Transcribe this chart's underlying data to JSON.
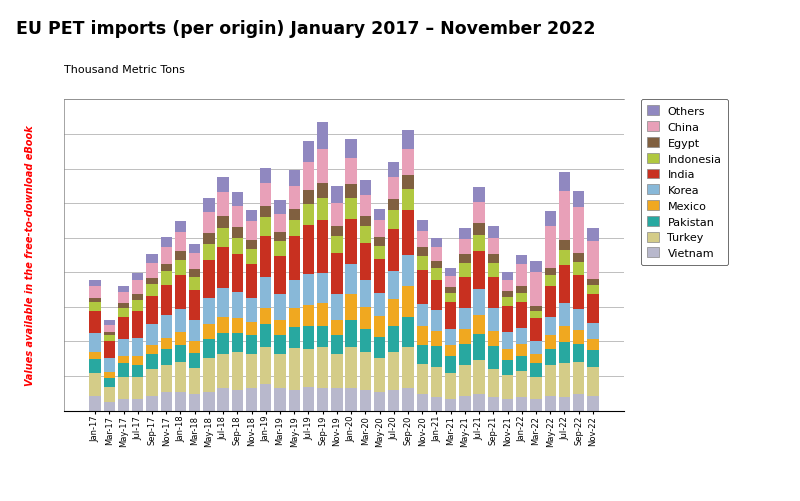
{
  "title": "EU PET imports (per origin) January 2017 – November 2022",
  "ylabel": "Thousand Metric Tons",
  "watermark": "Values available in the free-to-download eBook",
  "countries": [
    "Vietnam",
    "Turkey",
    "Pakistan",
    "Mexico",
    "Korea",
    "India",
    "Indonesia",
    "Egypt",
    "China",
    "Others"
  ],
  "colors": {
    "Vietnam": "#b8b8cc",
    "Turkey": "#d4cc88",
    "Pakistan": "#28a8a0",
    "Mexico": "#f0a820",
    "Korea": "#88b8d8",
    "India": "#c83020",
    "Indonesia": "#b0c840",
    "Egypt": "#806040",
    "China": "#e8a0b8",
    "Others": "#9088c0"
  },
  "months": [
    "Jan-17",
    "Mar-17",
    "May-17",
    "Jul-17",
    "Sep-17",
    "Nov-17",
    "Jan-18",
    "Mar-18",
    "May-18",
    "Jul-18",
    "Sep-18",
    "Nov-18",
    "Jan-19",
    "Mar-19",
    "May-19",
    "Jul-19",
    "Sep-19",
    "Nov-19",
    "Jan-20",
    "Mar-20",
    "May-20",
    "Jul-20",
    "Sep-20",
    "Nov-20",
    "Jan-21",
    "Mar-21",
    "May-21",
    "Jul-21",
    "Sep-21",
    "Nov-21",
    "Jan-22",
    "Mar-22",
    "May-22",
    "Jul-22",
    "Sep-22",
    "Nov-22"
  ],
  "data": {
    "Vietnam": [
      20,
      12,
      15,
      15,
      20,
      25,
      25,
      22,
      25,
      30,
      28,
      30,
      35,
      30,
      28,
      32,
      30,
      30,
      30,
      28,
      25,
      28,
      30,
      22,
      18,
      15,
      20,
      22,
      18,
      15,
      18,
      15,
      20,
      18,
      22,
      20
    ],
    "Turkey": [
      30,
      20,
      30,
      30,
      35,
      35,
      40,
      35,
      45,
      45,
      50,
      45,
      50,
      45,
      55,
      50,
      55,
      45,
      55,
      50,
      45,
      50,
      55,
      40,
      40,
      35,
      40,
      45,
      38,
      32,
      35,
      30,
      40,
      45,
      42,
      38
    ],
    "Pakistan": [
      18,
      12,
      18,
      15,
      20,
      22,
      22,
      20,
      25,
      28,
      25,
      25,
      30,
      25,
      28,
      30,
      28,
      25,
      35,
      30,
      28,
      35,
      40,
      25,
      28,
      22,
      28,
      35,
      30,
      20,
      20,
      18,
      22,
      28,
      25,
      22
    ],
    "Mexico": [
      10,
      8,
      10,
      12,
      12,
      15,
      18,
      15,
      20,
      22,
      20,
      18,
      22,
      20,
      25,
      28,
      30,
      20,
      35,
      30,
      28,
      35,
      40,
      25,
      20,
      15,
      20,
      25,
      20,
      15,
      15,
      12,
      18,
      22,
      18,
      15
    ],
    "Korea": [
      25,
      18,
      22,
      25,
      28,
      30,
      30,
      28,
      35,
      38,
      35,
      32,
      40,
      35,
      38,
      42,
      40,
      35,
      40,
      35,
      30,
      38,
      42,
      30,
      28,
      22,
      28,
      35,
      30,
      22,
      22,
      18,
      25,
      30,
      28,
      22
    ],
    "India": [
      30,
      22,
      30,
      35,
      38,
      40,
      45,
      40,
      50,
      55,
      50,
      45,
      55,
      50,
      58,
      65,
      70,
      55,
      60,
      50,
      45,
      55,
      60,
      45,
      40,
      35,
      42,
      50,
      42,
      35,
      35,
      30,
      40,
      50,
      45,
      38
    ],
    "Indonesia": [
      12,
      8,
      12,
      15,
      15,
      18,
      20,
      18,
      22,
      25,
      22,
      20,
      25,
      20,
      22,
      28,
      30,
      22,
      28,
      22,
      18,
      25,
      28,
      18,
      15,
      12,
      18,
      22,
      18,
      12,
      12,
      10,
      15,
      20,
      18,
      12
    ],
    "Egypt": [
      5,
      4,
      6,
      8,
      8,
      10,
      12,
      10,
      14,
      16,
      14,
      12,
      15,
      12,
      14,
      18,
      20,
      14,
      18,
      14,
      12,
      15,
      18,
      12,
      10,
      8,
      12,
      15,
      12,
      8,
      8,
      6,
      10,
      14,
      12,
      8
    ],
    "China": [
      15,
      10,
      15,
      18,
      20,
      22,
      25,
      22,
      28,
      32,
      28,
      25,
      30,
      25,
      30,
      38,
      45,
      30,
      35,
      28,
      22,
      30,
      35,
      22,
      18,
      15,
      20,
      28,
      22,
      15,
      30,
      45,
      55,
      65,
      60,
      50
    ],
    "Others": [
      8,
      6,
      8,
      10,
      12,
      14,
      15,
      12,
      18,
      20,
      18,
      15,
      20,
      18,
      22,
      28,
      35,
      22,
      25,
      20,
      15,
      20,
      25,
      15,
      12,
      10,
      15,
      20,
      15,
      10,
      12,
      15,
      20,
      25,
      22,
      18
    ]
  },
  "n_gridlines": 9,
  "bar_width": 0.8
}
